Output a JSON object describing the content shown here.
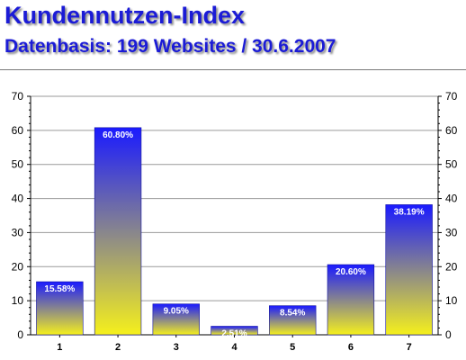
{
  "header": {
    "title": "Kundennutzen-Index",
    "subtitle": "Datenbasis: 199 Websites / 30.6.2007"
  },
  "colors": {
    "title": "#1b1bd6",
    "bar_top": "#1a1aff",
    "bar_bottom": "#f5f01c",
    "bar_label": "#ffffff"
  },
  "chart_data": {
    "type": "bar",
    "categories": [
      "1",
      "2",
      "3",
      "4",
      "5",
      "6",
      "7"
    ],
    "values": [
      15.58,
      60.8,
      9.05,
      2.51,
      8.54,
      20.6,
      38.19
    ],
    "data_labels": [
      "15.58%",
      "60.80%",
      "9.05%",
      "2.51%",
      "8.54%",
      "20.60%",
      "38.19%"
    ],
    "title": "Kundennutzen-Index",
    "subtitle": "Datenbasis: 199 Websites / 30.6.2007",
    "xlabel": "",
    "ylabel": "",
    "ylim": [
      0,
      70
    ],
    "yticks": [
      0,
      10,
      20,
      30,
      40,
      50,
      60,
      70
    ],
    "y_axis_both_sides": true,
    "grid": true,
    "legend": "none"
  }
}
